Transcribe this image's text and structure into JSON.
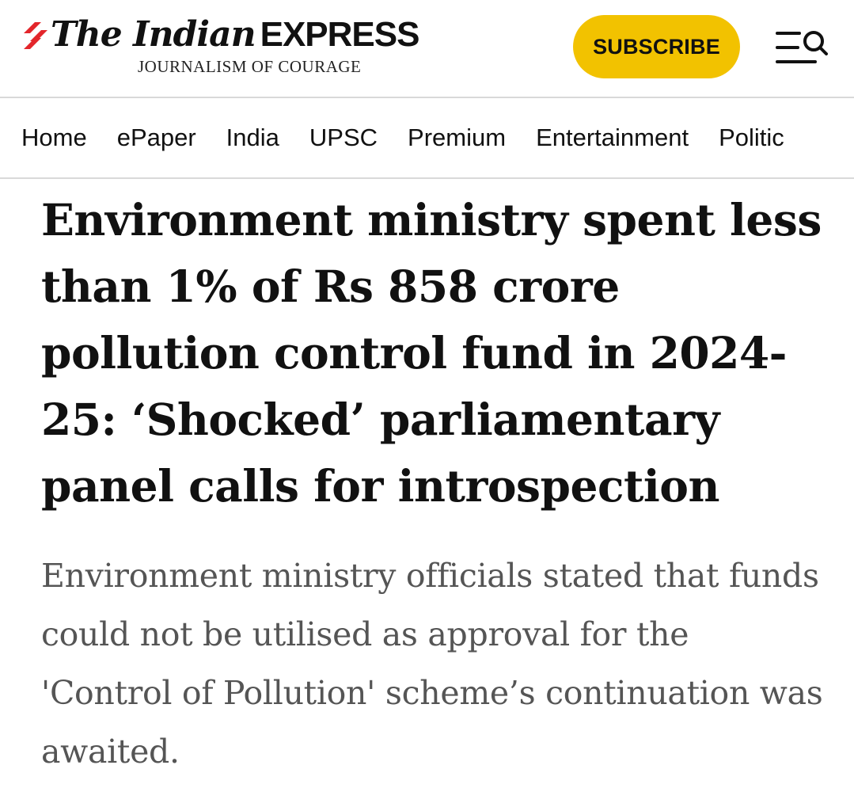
{
  "header": {
    "logo": {
      "title_part1": "The Indian",
      "title_part2": "EXPRESS",
      "tagline": "JOURNALISM OF COURAGE"
    },
    "subscribe_label": "SUBSCRIBE",
    "menu_icon": "menu-search-icon"
  },
  "nav": {
    "items": [
      {
        "label": "Home"
      },
      {
        "label": "ePaper"
      },
      {
        "label": "India"
      },
      {
        "label": "UPSC"
      },
      {
        "label": "Premium"
      },
      {
        "label": "Entertainment"
      },
      {
        "label": "Politic"
      }
    ]
  },
  "article": {
    "headline": "Environment ministry spent less than 1% of Rs 858 crore pollution control fund in 2024-25: ‘Shocked’ parliamentary panel calls for introspection",
    "dek": "Environment ministry officials stated that funds could not be utilised as approval for the 'Control of Pollution' scheme’s continuation was awaited."
  },
  "colors": {
    "brand_red": "#e3262b",
    "subscribe_yellow": "#f2c200",
    "text_dark": "#111111",
    "text_muted": "#555555",
    "divider": "#d9d9d9"
  }
}
